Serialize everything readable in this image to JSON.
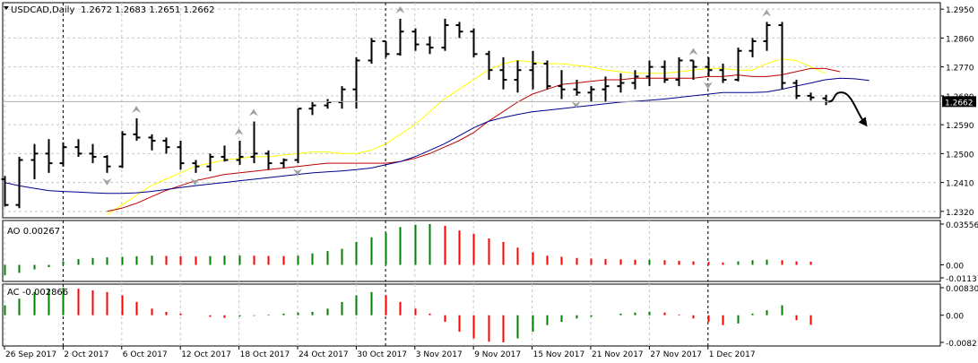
{
  "chart_data": [
    {
      "panel": "price",
      "type": "ohlc-bar",
      "title": "USDCAD,Daily",
      "ohlc_header": "1.2672 1.2683 1.2651 1.2662",
      "current_price": "1.2662",
      "ylim": [
        1.23,
        1.297
      ],
      "y_ticks": [
        "1.2950",
        "1.2860",
        "1.2770",
        "1.2680",
        "1.2590",
        "1.2500",
        "1.2410",
        "1.2320"
      ],
      "x_ticks": [
        "26 Sep 2017",
        "2 Oct 2017",
        "6 Oct 2017",
        "12 Oct 2017",
        "18 Oct 2017",
        "24 Oct 2017",
        "30 Oct 2017",
        "3 Nov 2017",
        "9 Nov 2017",
        "15 Nov 2017",
        "21 Nov 2017",
        "27 Nov 2017",
        "1 Dec 2017"
      ],
      "x_tick_bar_index": [
        0,
        4,
        8,
        12,
        16,
        20,
        24,
        28,
        32,
        36,
        40,
        44,
        48
      ],
      "period_separators_bar_index": [
        4,
        26,
        48
      ],
      "grid": true,
      "bars": [
        {
          "o": 1.242,
          "h": 1.243,
          "l": 1.2335,
          "c": 1.234
        },
        {
          "o": 1.234,
          "h": 1.249,
          "l": 1.233,
          "c": 1.248
        },
        {
          "o": 1.248,
          "h": 1.253,
          "l": 1.242,
          "c": 1.25
        },
        {
          "o": 1.25,
          "h": 1.2545,
          "l": 1.244,
          "c": 1.247
        },
        {
          "o": 1.247,
          "h": 1.2535,
          "l": 1.246,
          "c": 1.252
        },
        {
          "o": 1.252,
          "h": 1.2545,
          "l": 1.249,
          "c": 1.25
        },
        {
          "o": 1.25,
          "h": 1.253,
          "l": 1.247,
          "c": 1.249
        },
        {
          "o": 1.249,
          "h": 1.2495,
          "l": 1.244,
          "c": 1.246
        },
        {
          "o": 1.246,
          "h": 1.257,
          "l": 1.2455,
          "c": 1.256
        },
        {
          "o": 1.256,
          "h": 1.261,
          "l": 1.254,
          "c": 1.255
        },
        {
          "o": 1.255,
          "h": 1.256,
          "l": 1.251,
          "c": 1.254
        },
        {
          "o": 1.254,
          "h": 1.255,
          "l": 1.25,
          "c": 1.252
        },
        {
          "o": 1.252,
          "h": 1.254,
          "l": 1.245,
          "c": 1.247
        },
        {
          "o": 1.247,
          "h": 1.248,
          "l": 1.244,
          "c": 1.246
        },
        {
          "o": 1.246,
          "h": 1.25,
          "l": 1.2445,
          "c": 1.249
        },
        {
          "o": 1.249,
          "h": 1.2525,
          "l": 1.2475,
          "c": 1.248
        },
        {
          "o": 1.248,
          "h": 1.254,
          "l": 1.2465,
          "c": 1.249
        },
        {
          "o": 1.249,
          "h": 1.26,
          "l": 1.247,
          "c": 1.25
        },
        {
          "o": 1.25,
          "h": 1.251,
          "l": 1.245,
          "c": 1.247
        },
        {
          "o": 1.247,
          "h": 1.2485,
          "l": 1.2455,
          "c": 1.248
        },
        {
          "o": 1.248,
          "h": 1.264,
          "l": 1.247,
          "c": 1.264
        },
        {
          "o": 1.264,
          "h": 1.266,
          "l": 1.262,
          "c": 1.265
        },
        {
          "o": 1.265,
          "h": 1.267,
          "l": 1.264,
          "c": 1.266
        },
        {
          "o": 1.266,
          "h": 1.271,
          "l": 1.264,
          "c": 1.27
        },
        {
          "o": 1.27,
          "h": 1.28,
          "l": 1.264,
          "c": 1.279
        },
        {
          "o": 1.279,
          "h": 1.286,
          "l": 1.278,
          "c": 1.285
        },
        {
          "o": 1.285,
          "h": 1.285,
          "l": 1.28,
          "c": 1.281
        },
        {
          "o": 1.281,
          "h": 1.292,
          "l": 1.2805,
          "c": 1.288
        },
        {
          "o": 1.288,
          "h": 1.289,
          "l": 1.282,
          "c": 1.284
        },
        {
          "o": 1.284,
          "h": 1.2865,
          "l": 1.281,
          "c": 1.283
        },
        {
          "o": 1.283,
          "h": 1.292,
          "l": 1.282,
          "c": 1.29
        },
        {
          "o": 1.29,
          "h": 1.291,
          "l": 1.286,
          "c": 1.288
        },
        {
          "o": 1.288,
          "h": 1.289,
          "l": 1.28,
          "c": 1.281
        },
        {
          "o": 1.281,
          "h": 1.282,
          "l": 1.273,
          "c": 1.276
        },
        {
          "o": 1.276,
          "h": 1.28,
          "l": 1.27,
          "c": 1.273
        },
        {
          "o": 1.273,
          "h": 1.279,
          "l": 1.269,
          "c": 1.276
        },
        {
          "o": 1.276,
          "h": 1.282,
          "l": 1.27,
          "c": 1.278
        },
        {
          "o": 1.278,
          "h": 1.279,
          "l": 1.27,
          "c": 1.271
        },
        {
          "o": 1.271,
          "h": 1.276,
          "l": 1.267,
          "c": 1.27
        },
        {
          "o": 1.27,
          "h": 1.273,
          "l": 1.268,
          "c": 1.269
        },
        {
          "o": 1.269,
          "h": 1.271,
          "l": 1.266,
          "c": 1.27
        },
        {
          "o": 1.27,
          "h": 1.274,
          "l": 1.266,
          "c": 1.271
        },
        {
          "o": 1.271,
          "h": 1.275,
          "l": 1.269,
          "c": 1.272
        },
        {
          "o": 1.272,
          "h": 1.276,
          "l": 1.27,
          "c": 1.274
        },
        {
          "o": 1.274,
          "h": 1.279,
          "l": 1.271,
          "c": 1.277
        },
        {
          "o": 1.277,
          "h": 1.279,
          "l": 1.272,
          "c": 1.273
        },
        {
          "o": 1.273,
          "h": 1.28,
          "l": 1.271,
          "c": 1.279
        },
        {
          "o": 1.279,
          "h": 1.279,
          "l": 1.273,
          "c": 1.277
        },
        {
          "o": 1.277,
          "h": 1.28,
          "l": 1.274,
          "c": 1.276
        },
        {
          "o": 1.276,
          "h": 1.278,
          "l": 1.272,
          "c": 1.273
        },
        {
          "o": 1.273,
          "h": 1.283,
          "l": 1.2725,
          "c": 1.282
        },
        {
          "o": 1.282,
          "h": 1.286,
          "l": 1.28,
          "c": 1.285
        },
        {
          "o": 1.285,
          "h": 1.291,
          "l": 1.282,
          "c": 1.29
        },
        {
          "o": 1.29,
          "h": 1.291,
          "l": 1.27,
          "c": 1.272
        },
        {
          "o": 1.272,
          "h": 1.273,
          "l": 1.267,
          "c": 1.268
        },
        {
          "o": 1.268,
          "h": 1.269,
          "l": 1.2665,
          "c": 1.2675
        },
        {
          "o": 1.2672,
          "h": 1.2683,
          "l": 1.2651,
          "c": 1.2662
        }
      ],
      "fractals_up_bar_index": [
        9,
        16,
        17,
        27,
        47,
        52
      ],
      "fractals_down_bar_index": [
        7,
        13,
        20,
        39,
        48
      ],
      "moving_averages": [
        {
          "color": "#ffff00",
          "x0": 7,
          "values": [
            1.231,
            1.234,
            1.237,
            1.24,
            1.242,
            1.244,
            1.246,
            1.247,
            1.248,
            1.2485,
            1.249,
            1.249,
            1.2495,
            1.25,
            1.2505,
            1.2505,
            1.25,
            1.25,
            1.251,
            1.253,
            1.256,
            1.259,
            1.263,
            1.267,
            1.27,
            1.273,
            1.276,
            1.278,
            1.279,
            1.2785,
            1.278,
            1.278,
            1.2775,
            1.277,
            1.276,
            1.2755,
            1.275,
            1.275,
            1.275,
            1.2755,
            1.276,
            1.2765,
            1.2765,
            1.276,
            1.276,
            1.278,
            1.2795,
            1.279,
            1.277,
            1.275
          ]
        },
        {
          "color": "#c00000",
          "x0": 7,
          "values": [
            1.232,
            1.233,
            1.2345,
            1.2365,
            1.2385,
            1.24,
            1.2415,
            1.2425,
            1.2435,
            1.244,
            1.2445,
            1.245,
            1.2455,
            1.246,
            1.2465,
            1.247,
            1.247,
            1.247,
            1.247,
            1.247,
            1.2475,
            1.2485,
            1.25,
            1.252,
            1.254,
            1.2565,
            1.26,
            1.263,
            1.266,
            1.2685,
            1.27,
            1.2715,
            1.272,
            1.2725,
            1.273,
            1.273,
            1.2735,
            1.2735,
            1.2735,
            1.2735,
            1.2735,
            1.274,
            1.274,
            1.2745,
            1.274,
            1.274,
            1.2745,
            1.2755,
            1.2765,
            1.2765,
            1.2755
          ]
        },
        {
          "color": "#00008b",
          "x0": 0,
          "values": [
            1.241,
            1.24,
            1.2392,
            1.2385,
            1.2382,
            1.238,
            1.2378,
            1.2376,
            1.2376,
            1.2378,
            1.2382,
            1.2388,
            1.2394,
            1.24,
            1.2405,
            1.241,
            1.2415,
            1.242,
            1.2425,
            1.243,
            1.2435,
            1.244,
            1.2443,
            1.2446,
            1.245,
            1.2455,
            1.2465,
            1.2475,
            1.249,
            1.251,
            1.253,
            1.2555,
            1.258,
            1.26,
            1.2612,
            1.2622,
            1.263,
            1.2635,
            1.264,
            1.2645,
            1.265,
            1.2655,
            1.266,
            1.2663,
            1.2666,
            1.267,
            1.2675,
            1.268,
            1.2685,
            1.269,
            1.269,
            1.269,
            1.2692,
            1.27,
            1.271,
            1.272,
            1.273,
            1.2735,
            1.2733,
            1.2728
          ]
        }
      ],
      "annotation_arrow": "curved-arrow-down"
    },
    {
      "panel": "ao",
      "type": "histogram",
      "label": "AO 0.00267",
      "y_ticks": [
        "0.03556",
        "0.00",
        "-0.01137"
      ],
      "ylim": [
        -0.01137,
        0.03556
      ],
      "values": [
        -0.009,
        -0.007,
        -0.004,
        -0.002,
        0.003,
        0.005,
        0.006,
        0.0065,
        0.007,
        0.0075,
        0.008,
        0.0078,
        0.0075,
        0.0073,
        0.0076,
        0.008,
        0.0082,
        0.008,
        0.0078,
        0.0076,
        0.008,
        0.01,
        0.012,
        0.014,
        0.02,
        0.024,
        0.028,
        0.033,
        0.035,
        0.0356,
        0.034,
        0.03,
        0.027,
        0.023,
        0.02,
        0.015,
        0.011,
        0.008,
        0.007,
        0.006,
        0.0055,
        0.005,
        0.0048,
        0.0045,
        0.0045,
        0.004,
        0.0035,
        0.003,
        0.0025,
        0.002,
        0.003,
        0.004,
        0.0045,
        0.004,
        0.003,
        0.0027
      ],
      "color_up": "#008000",
      "color_down": "#ff0000"
    },
    {
      "panel": "ac",
      "type": "histogram",
      "label": "AC -0.002866",
      "y_ticks": [
        "0.008304",
        "0.00",
        "-0.00821"
      ],
      "ylim": [
        -0.00821,
        0.008304
      ],
      "values": [
        0.003,
        0.005,
        0.007,
        0.008,
        0.0083,
        0.008,
        0.0075,
        0.007,
        0.006,
        0.004,
        0.002,
        0.001,
        0.0005,
        0.0,
        -0.0005,
        -0.0008,
        -0.0004,
        -0.0002,
        0.0002,
        0.0005,
        0.0008,
        0.001,
        0.002,
        0.004,
        0.006,
        0.007,
        0.006,
        0.004,
        0.002,
        0.0005,
        -0.002,
        -0.005,
        -0.007,
        -0.008,
        -0.0082,
        -0.007,
        -0.005,
        -0.003,
        -0.002,
        -0.001,
        -0.0005,
        0.0,
        0.0005,
        0.0008,
        0.001,
        0.0008,
        0.0002,
        -0.001,
        -0.002,
        -0.003,
        -0.0025,
        0.0005,
        0.0015,
        0.003,
        -0.0015,
        -0.0029
      ],
      "color_up": "#008000",
      "color_down": "#ff0000"
    }
  ]
}
